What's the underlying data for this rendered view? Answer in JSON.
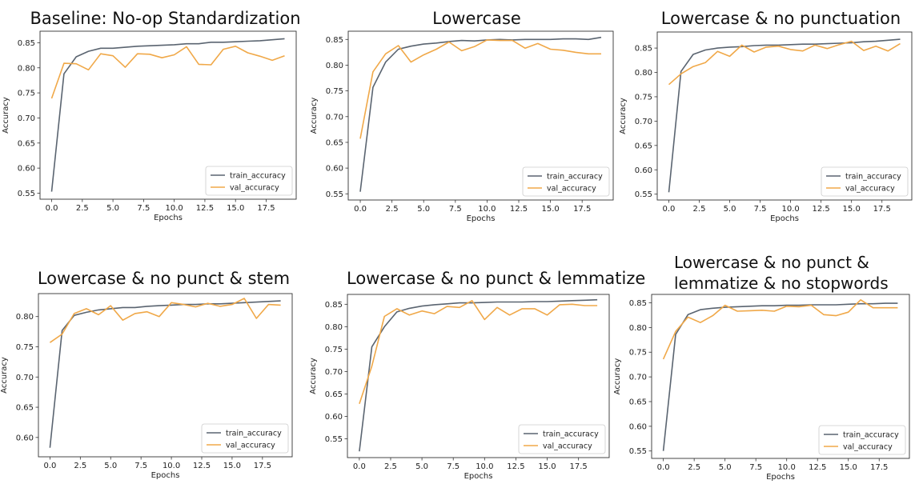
{
  "chart_data": [
    {
      "type": "line",
      "title": "Baseline: No-op Standardization",
      "xlabel": "Epochs",
      "ylabel": "Accuracy",
      "xlim": [
        -0.95,
        19.95
      ],
      "ylim": [
        0.538,
        0.873
      ],
      "xticks": [
        "0.0",
        "2.5",
        "5.0",
        "7.5",
        "10.0",
        "12.5",
        "15.0",
        "17.5"
      ],
      "yticks": [
        "0.55",
        "0.60",
        "0.65",
        "0.70",
        "0.75",
        "0.80",
        "0.85"
      ],
      "legend_position": "lower right",
      "series": [
        {
          "name": "train_accuracy",
          "color": "#5a6470",
          "values": [
            0.553,
            0.788,
            0.822,
            0.833,
            0.839,
            0.839,
            0.841,
            0.843,
            0.844,
            0.845,
            0.846,
            0.848,
            0.848,
            0.851,
            0.851,
            0.852,
            0.853,
            0.854,
            0.856,
            0.858
          ]
        },
        {
          "name": "val_accuracy",
          "color": "#f0a848",
          "values": [
            0.739,
            0.809,
            0.808,
            0.796,
            0.828,
            0.824,
            0.801,
            0.828,
            0.827,
            0.82,
            0.826,
            0.842,
            0.807,
            0.806,
            0.837,
            0.843,
            0.83,
            0.823,
            0.815,
            0.824
          ]
        }
      ]
    },
    {
      "type": "line",
      "title": "Lowercase",
      "xlabel": "Epochs",
      "ylabel": "Accuracy",
      "xlim": [
        -0.95,
        19.95
      ],
      "ylim": [
        0.538,
        0.866
      ],
      "xticks": [
        "0.0",
        "2.5",
        "5.0",
        "7.5",
        "10.0",
        "12.5",
        "15.0",
        "17.5"
      ],
      "yticks": [
        "0.55",
        "0.60",
        "0.65",
        "0.70",
        "0.75",
        "0.80",
        "0.85"
      ],
      "legend_position": "lower right",
      "series": [
        {
          "name": "train_accuracy",
          "color": "#5a6470",
          "values": [
            0.554,
            0.757,
            0.806,
            0.831,
            0.837,
            0.841,
            0.843,
            0.846,
            0.848,
            0.847,
            0.849,
            0.85,
            0.849,
            0.85,
            0.85,
            0.85,
            0.851,
            0.851,
            0.85,
            0.854
          ]
        },
        {
          "name": "val_accuracy",
          "color": "#f0a848",
          "values": [
            0.657,
            0.787,
            0.822,
            0.838,
            0.806,
            0.82,
            0.831,
            0.845,
            0.828,
            0.836,
            0.849,
            0.848,
            0.848,
            0.833,
            0.842,
            0.831,
            0.829,
            0.825,
            0.822,
            0.822
          ]
        }
      ]
    },
    {
      "type": "line",
      "title": "Lowercase & no punctuation",
      "xlabel": "Epochs",
      "ylabel": "Accuracy",
      "xlim": [
        -0.95,
        19.95
      ],
      "ylim": [
        0.538,
        0.883
      ],
      "xticks": [
        "0.0",
        "2.5",
        "5.0",
        "7.5",
        "10.0",
        "12.5",
        "15.0",
        "17.5"
      ],
      "yticks": [
        "0.55",
        "0.60",
        "0.65",
        "0.70",
        "0.75",
        "0.80",
        "0.85"
      ],
      "legend_position": "lower right",
      "series": [
        {
          "name": "train_accuracy",
          "color": "#5a6470",
          "values": [
            0.554,
            0.802,
            0.837,
            0.846,
            0.85,
            0.852,
            0.853,
            0.855,
            0.856,
            0.856,
            0.857,
            0.858,
            0.858,
            0.859,
            0.86,
            0.861,
            0.863,
            0.864,
            0.866,
            0.868
          ]
        },
        {
          "name": "val_accuracy",
          "color": "#f0a848",
          "values": [
            0.775,
            0.797,
            0.812,
            0.82,
            0.843,
            0.833,
            0.856,
            0.842,
            0.852,
            0.854,
            0.847,
            0.844,
            0.856,
            0.849,
            0.857,
            0.864,
            0.845,
            0.854,
            0.844,
            0.859
          ]
        }
      ]
    },
    {
      "type": "line",
      "title": "Lowercase & no punct & stem",
      "xlabel": "Epochs",
      "ylabel": "Accuracy",
      "xlim": [
        -0.95,
        19.95
      ],
      "ylim": [
        0.568,
        0.838
      ],
      "xticks": [
        "0.0",
        "2.5",
        "5.0",
        "7.5",
        "10.0",
        "12.5",
        "15.0",
        "17.5"
      ],
      "yticks": [
        "0.60",
        "0.65",
        "0.70",
        "0.75",
        "0.80"
      ],
      "legend_position": "lower right",
      "series": [
        {
          "name": "train_accuracy",
          "color": "#5a6470",
          "values": [
            0.583,
            0.777,
            0.802,
            0.807,
            0.811,
            0.813,
            0.815,
            0.815,
            0.817,
            0.818,
            0.819,
            0.82,
            0.82,
            0.821,
            0.821,
            0.822,
            0.823,
            0.824,
            0.825,
            0.826
          ]
        },
        {
          "name": "val_accuracy",
          "color": "#f0a848",
          "values": [
            0.757,
            0.771,
            0.805,
            0.813,
            0.803,
            0.818,
            0.794,
            0.805,
            0.808,
            0.8,
            0.823,
            0.82,
            0.816,
            0.822,
            0.817,
            0.82,
            0.83,
            0.797,
            0.82,
            0.819
          ]
        }
      ]
    },
    {
      "type": "line",
      "title": "Lowercase & no punct & lemmatize",
      "xlabel": "Epochs",
      "ylabel": "Accuracy",
      "xlim": [
        -0.95,
        19.95
      ],
      "ylim": [
        0.508,
        0.872
      ],
      "xticks": [
        "0.0",
        "2.5",
        "5.0",
        "7.5",
        "10.0",
        "12.5",
        "15.0",
        "17.5"
      ],
      "yticks": [
        "0.55",
        "0.60",
        "0.65",
        "0.70",
        "0.75",
        "0.80",
        "0.85"
      ],
      "legend_position": "lower right",
      "series": [
        {
          "name": "train_accuracy",
          "color": "#5a6470",
          "values": [
            0.522,
            0.755,
            0.8,
            0.833,
            0.841,
            0.846,
            0.849,
            0.851,
            0.853,
            0.853,
            0.854,
            0.855,
            0.855,
            0.855,
            0.856,
            0.856,
            0.857,
            0.858,
            0.859,
            0.86
          ]
        },
        {
          "name": "val_accuracy",
          "color": "#f0a848",
          "values": [
            0.628,
            0.712,
            0.823,
            0.84,
            0.826,
            0.835,
            0.829,
            0.845,
            0.843,
            0.858,
            0.816,
            0.843,
            0.826,
            0.84,
            0.84,
            0.826,
            0.849,
            0.85,
            0.847,
            0.847
          ]
        }
      ]
    },
    {
      "type": "line",
      "title": "Lowercase & no punct & lemmatize & no stopwords",
      "xlabel": "Epochs",
      "ylabel": "Accuracy",
      "xlim": [
        -0.95,
        19.95
      ],
      "ylim": [
        0.535,
        0.867
      ],
      "xticks": [
        "0.0",
        "2.5",
        "5.0",
        "7.5",
        "10.0",
        "12.5",
        "15.0",
        "17.5"
      ],
      "yticks": [
        "0.55",
        "0.60",
        "0.65",
        "0.70",
        "0.75",
        "0.80",
        "0.85"
      ],
      "legend_position": "lower right",
      "series": [
        {
          "name": "train_accuracy",
          "color": "#5a6470",
          "values": [
            0.55,
            0.786,
            0.826,
            0.836,
            0.839,
            0.841,
            0.842,
            0.843,
            0.844,
            0.844,
            0.845,
            0.845,
            0.846,
            0.846,
            0.846,
            0.847,
            0.848,
            0.848,
            0.849,
            0.849
          ]
        },
        {
          "name": "val_accuracy",
          "color": "#f0a848",
          "values": [
            0.736,
            0.792,
            0.821,
            0.81,
            0.824,
            0.845,
            0.833,
            0.834,
            0.835,
            0.833,
            0.843,
            0.842,
            0.845,
            0.826,
            0.824,
            0.831,
            0.856,
            0.84,
            0.84,
            0.84
          ]
        }
      ]
    }
  ]
}
